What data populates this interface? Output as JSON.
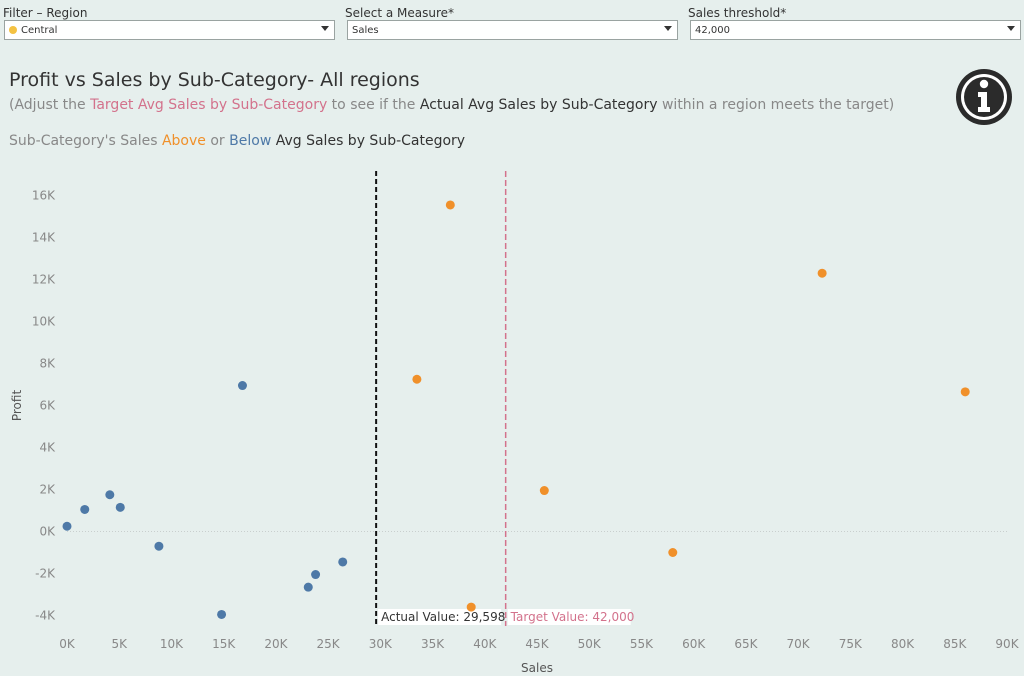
{
  "filters": {
    "region": {
      "label": "Filter – Region",
      "value": "Central",
      "dot_color": "#f4c242"
    },
    "measure": {
      "label": "Select a Measure*",
      "value": "Sales"
    },
    "threshold": {
      "label": "Sales threshold*",
      "value": "42,000"
    }
  },
  "header": {
    "title": "Profit vs Sales by Sub-Category- All regions",
    "subtitle_prefix": "(Adjust the ",
    "subtitle_target": "Target Avg Sales by Sub-Category",
    "subtitle_middle": " to see if the ",
    "subtitle_actual": "Actual Avg Sales by Sub-Category",
    "subtitle_suffix": " within a region meets the target)",
    "legend_prefix": "Sub-Category's Sales ",
    "legend_above": "Above",
    "legend_or": " or ",
    "legend_below": "Below",
    "legend_suffix": " Avg Sales by Sub-Category"
  },
  "colors": {
    "above": "#f0902a",
    "below": "#4e79a7",
    "target": "#d3728c",
    "actual": "#111111"
  },
  "chart_data": {
    "type": "scatter",
    "xlabel": "Sales",
    "ylabel": "Profit",
    "xlim": [
      0,
      90000
    ],
    "ylim": [
      -4500,
      16500
    ],
    "xticks": [
      0,
      5000,
      10000,
      15000,
      20000,
      25000,
      30000,
      35000,
      40000,
      45000,
      50000,
      55000,
      60000,
      65000,
      70000,
      75000,
      80000,
      85000,
      90000
    ],
    "xtick_labels": [
      "0K",
      "5K",
      "10K",
      "15K",
      "20K",
      "25K",
      "30K",
      "35K",
      "40K",
      "45K",
      "50K",
      "55K",
      "60K",
      "65K",
      "70K",
      "75K",
      "80K",
      "85K",
      "90K"
    ],
    "yticks": [
      -4000,
      -2000,
      0,
      2000,
      4000,
      6000,
      8000,
      10000,
      12000,
      14000,
      16000
    ],
    "ytick_labels": [
      "-4K",
      "-2K",
      "0K",
      "2K",
      "4K",
      "6K",
      "8K",
      "10K",
      "12K",
      "14K",
      "16K"
    ],
    "series": [
      {
        "name": "Below",
        "points": [
          {
            "x": 0,
            "y": 250
          },
          {
            "x": 1700,
            "y": 1050
          },
          {
            "x": 4100,
            "y": 1750
          },
          {
            "x": 5100,
            "y": 1150
          },
          {
            "x": 8800,
            "y": -700
          },
          {
            "x": 14800,
            "y": -3950
          },
          {
            "x": 16800,
            "y": 6950
          },
          {
            "x": 23100,
            "y": -2650
          },
          {
            "x": 23800,
            "y": -2050
          },
          {
            "x": 26400,
            "y": -1450
          }
        ]
      },
      {
        "name": "Above",
        "points": [
          {
            "x": 33500,
            "y": 7250
          },
          {
            "x": 36700,
            "y": 15550
          },
          {
            "x": 38700,
            "y": -3600
          },
          {
            "x": 45700,
            "y": 1950
          },
          {
            "x": 58000,
            "y": -1000
          },
          {
            "x": 72300,
            "y": 12300
          },
          {
            "x": 86000,
            "y": 6650
          }
        ]
      }
    ],
    "reference_lines": [
      {
        "name": "actual",
        "x": 29598,
        "label": "Actual Value: 29,598"
      },
      {
        "name": "target",
        "x": 42000,
        "label": "Target Value: 42,000"
      }
    ]
  }
}
